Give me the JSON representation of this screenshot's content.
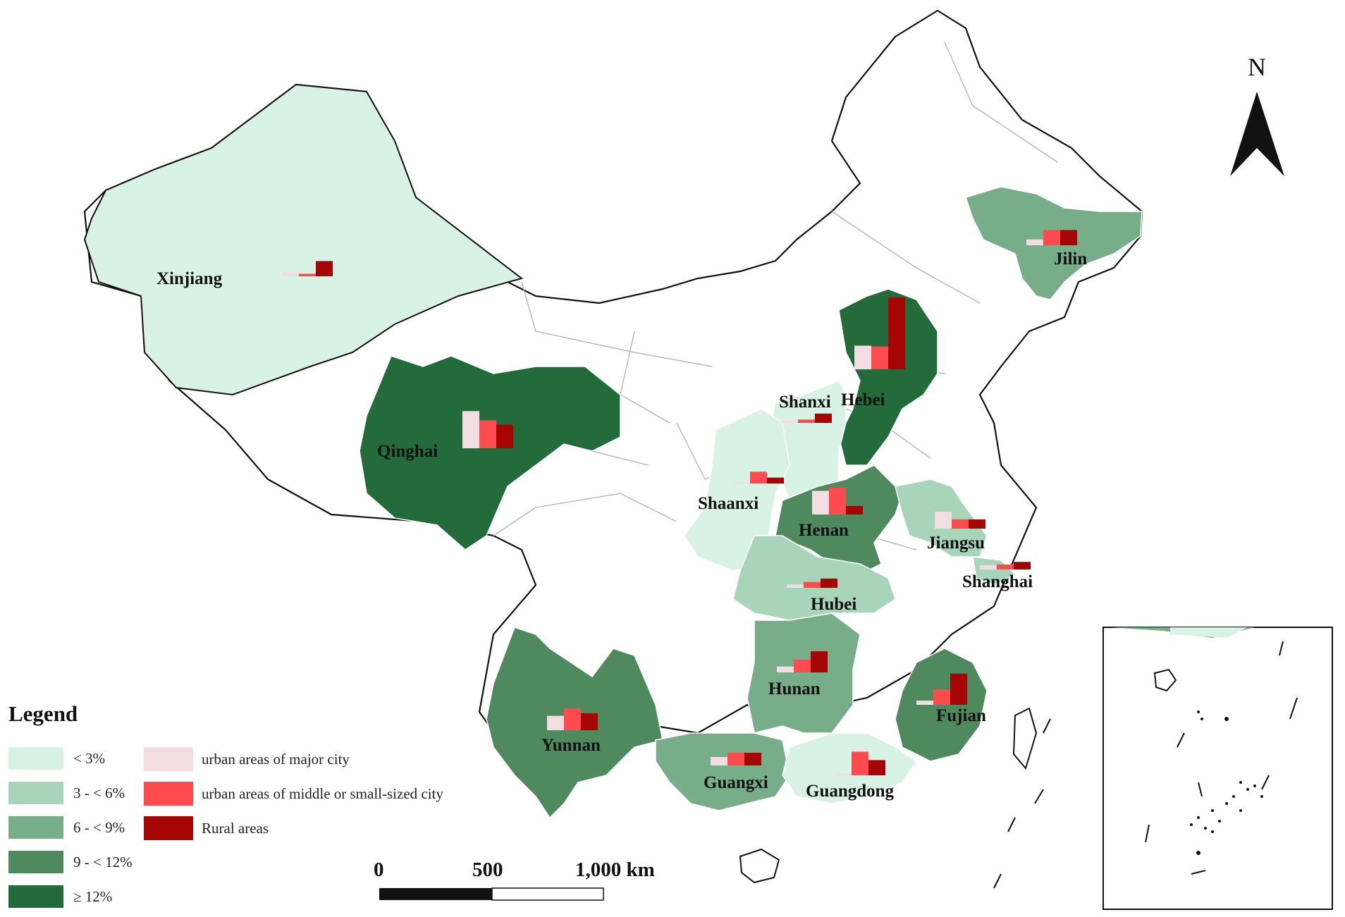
{
  "map": {
    "north_label": "N",
    "scale_bar": {
      "labels": [
        "0",
        "500",
        "1,000 km"
      ]
    }
  },
  "legend": {
    "title": "Legend",
    "classes": [
      {
        "label": "< 3%",
        "color": "#d9f2e6"
      },
      {
        "label": "3 - < 6%",
        "color": "#a8d5b9"
      },
      {
        "label": "6 - < 9%",
        "color": "#77ad88"
      },
      {
        "label": "9 - < 12%",
        "color": "#4f8a5e"
      },
      {
        "label": "≥ 12%",
        "color": "#236b3a"
      }
    ],
    "bars": [
      {
        "label": "urban areas of major city",
        "color": "#f2dde2"
      },
      {
        "label": "urban areas of middle or  small-sized city",
        "color": "#ff4b4f"
      },
      {
        "label": "Rural areas",
        "color": "#a50505"
      }
    ]
  },
  "provinces": [
    {
      "name": "Xinjiang",
      "class": 0,
      "bars": [
        0.5,
        0.3,
        1.8
      ]
    },
    {
      "name": "Qinghai",
      "class": 4,
      "bars": [
        4.4,
        3.3,
        2.8
      ]
    },
    {
      "name": "Jilin",
      "class": 2,
      "bars": [
        0.7,
        1.8,
        1.8
      ]
    },
    {
      "name": "Hebei",
      "class": 4,
      "bars": [
        2.8,
        2.7,
        8.5
      ]
    },
    {
      "name": "Shanxi",
      "class": 0,
      "bars": [
        0.3,
        0.4,
        1.1
      ]
    },
    {
      "name": "Shaanxi",
      "class": 0,
      "bars": [
        0,
        1.4,
        0.7
      ]
    },
    {
      "name": "Henan",
      "class": 3,
      "bars": [
        2.8,
        3.2,
        1.0
      ]
    },
    {
      "name": "Jiangsu",
      "class": 1,
      "bars": [
        2.0,
        1.1,
        1.1
      ]
    },
    {
      "name": "Shanghai",
      "class": 1,
      "bars": [
        0.5,
        0.6,
        0.9
      ]
    },
    {
      "name": "Hubei",
      "class": 1,
      "bars": [
        0.4,
        0.7,
        1.1
      ]
    },
    {
      "name": "Hunan",
      "class": 2,
      "bars": [
        0.7,
        1.5,
        2.5
      ]
    },
    {
      "name": "Fujian",
      "class": 3,
      "bars": [
        0.5,
        1.8,
        3.7
      ]
    },
    {
      "name": "Yunnan",
      "class": 3,
      "bars": [
        1.7,
        2.6,
        2.0
      ]
    },
    {
      "name": "Guangxi",
      "class": 2,
      "bars": [
        1.0,
        1.5,
        1.5
      ]
    },
    {
      "name": "Guangdong",
      "class": 0,
      "bars": [
        0,
        2.8,
        1.8
      ]
    }
  ]
}
